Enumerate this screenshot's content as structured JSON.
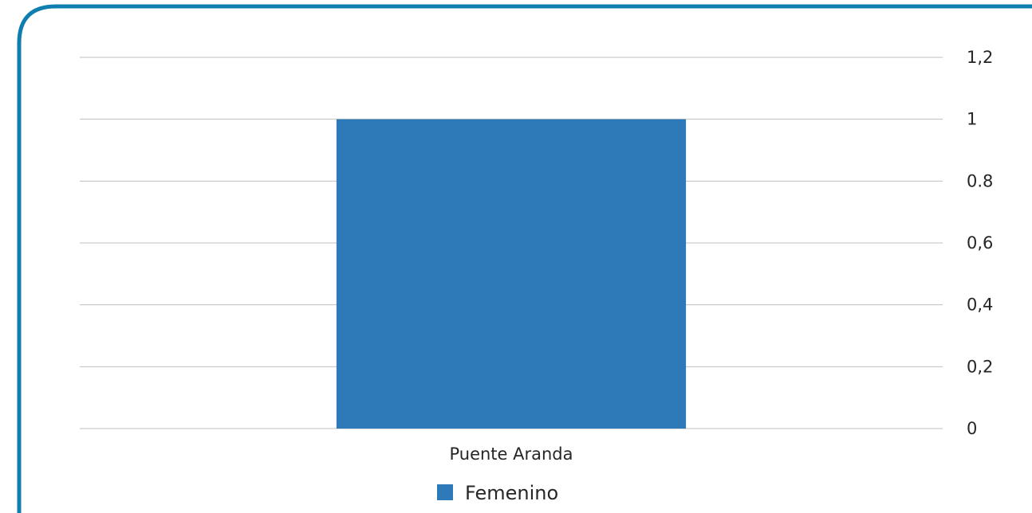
{
  "chart_data": {
    "type": "bar",
    "categories": [
      "Puente Aranda"
    ],
    "series": [
      {
        "name": "Femenino",
        "values": [
          1
        ],
        "color": "#2E79B8"
      }
    ],
    "ylim": [
      0,
      1.2
    ],
    "yticks": [
      0,
      0.2,
      0.4,
      0.6,
      0.8,
      1,
      1.2
    ],
    "ytick_labels": [
      "0",
      "0,2",
      "0,4",
      "0,6",
      "0.8",
      "1",
      "1,2"
    ],
    "y_axis_position": "right",
    "grid": true,
    "legend": "bottom",
    "title": "",
    "xlabel": "",
    "ylabel": ""
  },
  "colors": {
    "frame_border": "#0E7DB0",
    "gridline": "#BFBFBF",
    "text": "#262626"
  }
}
